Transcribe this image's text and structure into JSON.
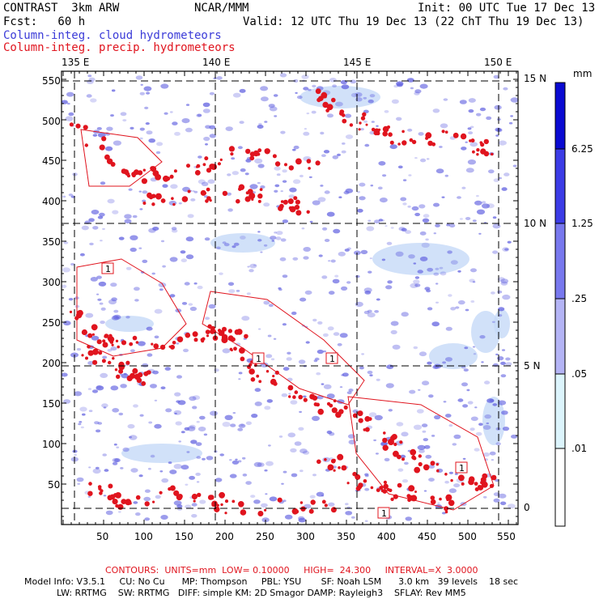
{
  "header": {
    "model": "CONTRAST  3km ARW",
    "org": "NCAR/MMM",
    "init": "Init: 00 UTC Tue 17 Dec 13",
    "fcst": "Fcst:   60 h",
    "valid": "Valid: 12 UTC Thu 19 Dec 13 (22 ChT Thu 19 Dec 13)",
    "field_cloud": "Column-integ. cloud hydrometeors",
    "field_precip": "Column-integ. precip. hydrometeors"
  },
  "map": {
    "lon_labels": [
      "135 E",
      "140 E",
      "145 E",
      "150 E"
    ],
    "lat_labels": [
      "15 N",
      "10 N",
      "5 N",
      "0"
    ],
    "x_ticks": [
      "50",
      "100",
      "150",
      "200",
      "250",
      "300",
      "350",
      "400",
      "450",
      "500",
      "550"
    ],
    "y_ticks": [
      "50",
      "100",
      "150",
      "200",
      "250",
      "300",
      "350",
      "400",
      "450",
      "500",
      "550"
    ],
    "contour_label": "1"
  },
  "colorbar": {
    "unit": "mm",
    "labels": [
      "6.25",
      "1.25",
      ".25",
      ".05",
      ".01"
    ],
    "colors": [
      "#0a0ad2",
      "#3c3ce6",
      "#7878ee",
      "#b4b4f5",
      "#d9d9fa",
      "#dcf4fc",
      "#ffffff"
    ]
  },
  "footer": {
    "contours": "CONTOURS:  UNITS=mm  LOW= 0.10000     HIGH=  24.300     INTERVAL=X  3.0000",
    "line1": "Model Info: V3.5.1     CU: No Cu      MP: Thompson     PBL: YSU       SF: Noah LSM      3.0 km   39 levels    18 sec",
    "line2": "LW: RRTMG    SW: RRTMG   DIFF: simple KM: 2D Smagor DAMP: Rayleigh3    SFLAY: Rev MM5"
  },
  "colors": {
    "cloud": "#6060e0",
    "cloud_light": "#c6daf8",
    "precip": "#e0141e"
  }
}
